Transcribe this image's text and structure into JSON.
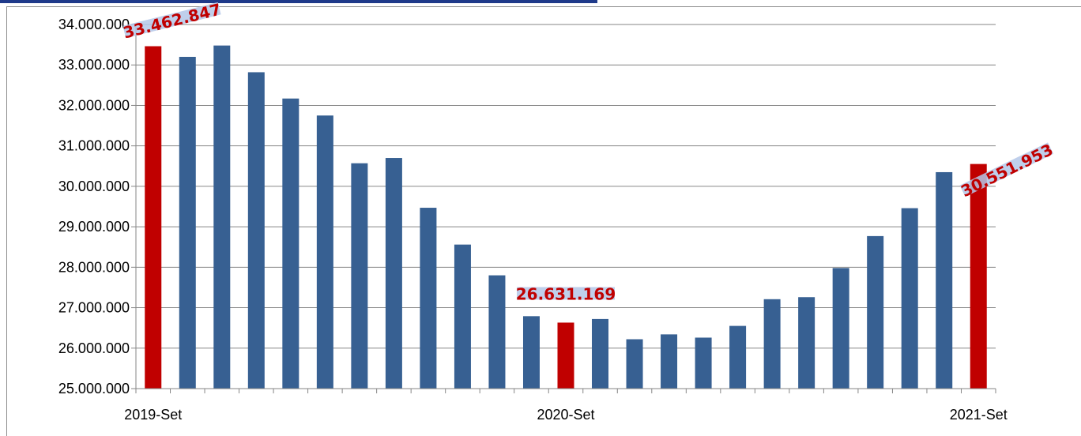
{
  "chart_data": {
    "type": "bar",
    "categories": [
      "2019-Set",
      "",
      "",
      "",
      "",
      "",
      "",
      "",
      "",
      "",
      "",
      "",
      "2020-Set",
      "",
      "",
      "",
      "",
      "",
      "",
      "",
      "",
      "",
      "",
      "",
      "2021-Set"
    ],
    "x_tick_labels": [
      "2019-Set",
      "2020-Set",
      "2021-Set"
    ],
    "values": [
      33462847,
      33200000,
      33480000,
      32820000,
      32170000,
      31750000,
      30570000,
      30700000,
      29470000,
      28560000,
      27800000,
      26790000,
      26631169,
      26720000,
      26220000,
      26340000,
      26260000,
      26550000,
      27210000,
      27260000,
      27980000,
      28770000,
      29460000,
      30350000,
      30551953
    ],
    "highlighted_indices": [
      0,
      12,
      24
    ],
    "callouts": [
      {
        "index": 0,
        "label": "33.462.847"
      },
      {
        "index": 12,
        "label": "26.631.169"
      },
      {
        "index": 24,
        "label": "30.551.953"
      }
    ],
    "ylim": [
      25000000,
      34000000
    ],
    "yticks": [
      "25.000.000",
      "26.000.000",
      "27.000.000",
      "28.000.000",
      "29.000.000",
      "30.000.000",
      "31.000.000",
      "32.000.000",
      "33.000.000",
      "34.000.000"
    ],
    "grid": true,
    "colors": {
      "bar": "#376092",
      "highlight": "#c00000",
      "grid": "#868686",
      "callout_box": "#b4c7e7"
    },
    "title": "",
    "xlabel": "",
    "ylabel": ""
  }
}
